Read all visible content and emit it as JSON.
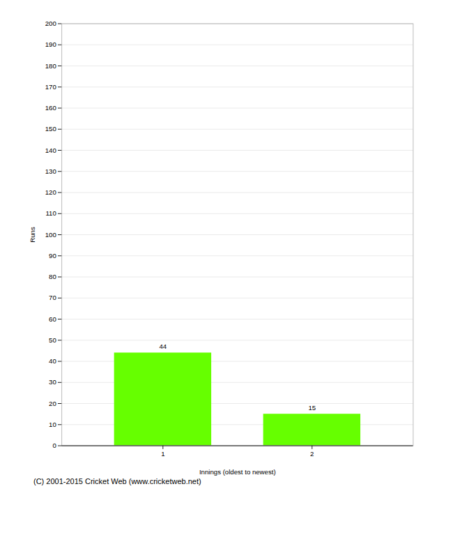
{
  "chart_data": {
    "type": "bar",
    "categories": [
      "1",
      "2"
    ],
    "values": [
      44,
      15
    ],
    "color": "#66ff00",
    "ylabel": "Runs",
    "xlabel": "Innings (oldest to newest)",
    "ylim": [
      0,
      200
    ],
    "yticks": [
      0,
      10,
      20,
      30,
      40,
      50,
      60,
      70,
      80,
      90,
      100,
      110,
      120,
      130,
      140,
      150,
      160,
      170,
      180,
      190,
      200
    ],
    "grid": true,
    "data_labels": true,
    "caption": "(C) 2001-2015 Cricket Web (www.cricketweb.net)"
  }
}
